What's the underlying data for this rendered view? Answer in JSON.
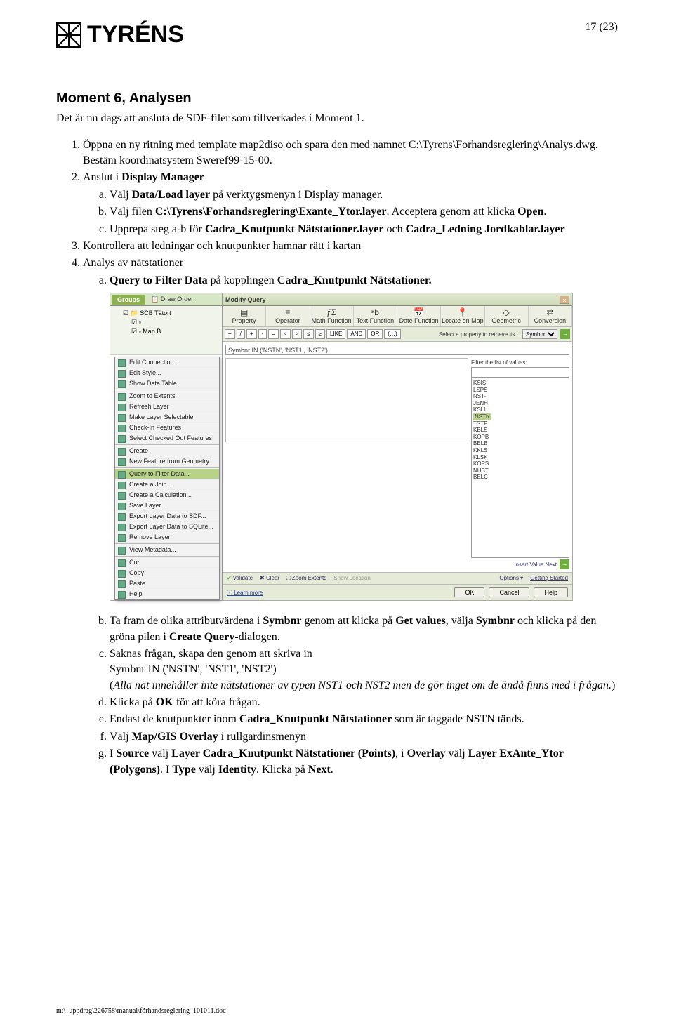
{
  "header": {
    "logo_text": "TYRÉNS",
    "page_number": "17 (23)"
  },
  "section": {
    "title": "Moment 6, Analysen",
    "intro": "Det är nu dags att ansluta de SDF-filer som tillverkades i Moment 1."
  },
  "steps": {
    "s1_a": "Öppna en ny ritning med template map2diso och spara den med namnet C:\\Tyrens\\Forhandsreglering\\Analys.dwg. Bestäm koordinatsystem Sweref99-15-00.",
    "s2": "Anslut i ",
    "s2_b": "Display Manager",
    "s2a_a": "Välj ",
    "s2a_b": "Data/Load layer",
    "s2a_c": " på verktygsmenyn i Display manager.",
    "s2b_a": "Välj filen ",
    "s2b_b": "C:\\Tyrens\\Forhandsreglering\\Exante_Ytor.layer",
    "s2b_c": ". Acceptera genom att klicka ",
    "s2b_d": "Open",
    "s2b_e": ".",
    "s2c_a": "Upprepa steg a-b för ",
    "s2c_b": "Cadra_Knutpunkt Nätstationer.layer",
    "s2c_c": " och ",
    "s2c_d": "Cadra_Ledning Jordkablar.layer",
    "s3": "Kontrollera att ledningar och knutpunkter hamnar rätt i kartan",
    "s4": "Analys av nätstationer",
    "s4a_a": "Query to Filter Data",
    "s4a_b": " på kopplingen ",
    "s4a_c": "Cadra_Knutpunkt Nätstationer."
  },
  "lower": {
    "b_1": "Ta fram de olika attributvärdena i ",
    "b_2": "Symbnr",
    "b_3": " genom att klicka på ",
    "b_4": "Get values",
    "b_5": ", välja ",
    "b_6": "Symbnr",
    "b_7": " och klicka på den gröna pilen i ",
    "b_8": "Create Query",
    "b_9": "-dialogen.",
    "c_1": "Saknas frågan, skapa den genom att skriva in",
    "c_2": "Symbnr IN ('NSTN', 'NST1', 'NST2')",
    "c_3": "(",
    "c_4": "Alla nät innehåller inte nätstationer av typen NST1 och NST2 men de gör inget om de ändå finns med i frågan.",
    "c_5": ")",
    "d_1": "Klicka på ",
    "d_2": "OK",
    "d_3": " för att köra frågan.",
    "e_1": "Endast de knutpunkter inom ",
    "e_2": "Cadra_Knutpunkt Nätstationer",
    "e_3": " som är taggade NSTN tänds.",
    "f_1": "Välj ",
    "f_2": "Map/GIS Overlay",
    "f_3": " i rullgardinsmenyn",
    "g_1": "I ",
    "g_2": "Source",
    "g_3": " välj ",
    "g_4": "Layer Cadra_Knutpunkt Nätstationer (Points)",
    "g_5": ", i ",
    "g_6": "Overlay",
    "g_7": " välj ",
    "g_8": "Layer ExAnte_Ytor (Polygons)",
    "g_9": ". I ",
    "g_10": "Type",
    "g_11": " välj ",
    "g_12": "Identity",
    "g_13": ". Klicka på ",
    "g_14": "Next",
    "g_15": "."
  },
  "screenshot": {
    "title": "Modify Query",
    "tabs": {
      "groups": "Groups",
      "draw_order": "Draw Order"
    },
    "tree_root": "SCB Tätort",
    "context_menu": [
      "Edit Connection...",
      "Edit Style...",
      "Show Data Table",
      "Zoom to Extents",
      "Refresh Layer",
      "Make Layer Selectable",
      "Check-In Features",
      "Select Checked Out Features",
      "Create",
      "New Feature from Geometry",
      "Query to Filter Data...",
      "Create a Join...",
      "Create a Calculation...",
      "Save Layer...",
      "Export Layer Data to SDF...",
      "Export Layer Data to SQLite...",
      "Remove Layer",
      "View Metadata...",
      "Cut",
      "Copy",
      "Paste",
      "Help"
    ],
    "context_menu_selected_index": 10,
    "categories": [
      "Property",
      "Operator",
      "Math Function",
      "Text Function",
      "Date Function",
      "Locate on Map",
      "Geometric",
      "Conversion"
    ],
    "ops": [
      "+",
      "/",
      "+",
      "-",
      "=",
      "<",
      ">",
      "≤",
      "≥",
      "LIKE",
      "AND",
      "OR",
      "(…)"
    ],
    "sel_label": "Select a property to retrieve its...",
    "sel_value": "Symbnr",
    "query_text": "Symbnr IN ('NSTN', 'NST1', 'NST2')",
    "filter_label": "Filter the list of values:",
    "values": [
      "KSIS",
      "LSPS",
      "NST-",
      "JENH",
      "KSLI",
      "NSTN",
      "TSTP",
      "KBLS",
      "KOPB",
      "BELB",
      "KKLS",
      "KLSK",
      "KOPS",
      "NHST",
      "BELC"
    ],
    "values_highlight_index": 5,
    "insert_label": "Insert Value  Next",
    "status": {
      "validate": "Validate",
      "clear": "Clear",
      "zoom": "Zoom Extents",
      "showloc": "Show Location",
      "options": "Options ▾",
      "getting_started": "Getting Started"
    },
    "learn_more": "Learn more",
    "buttons": {
      "ok": "OK",
      "cancel": "Cancel",
      "help": "Help"
    }
  },
  "footer": "m:\\_uppdrag\\226758\\manual\\förhandsreglering_101011.doc",
  "colors": {
    "accent_green": "#8db14f",
    "panel_bg": "#e6ead8",
    "highlight": "#b9d48c"
  }
}
